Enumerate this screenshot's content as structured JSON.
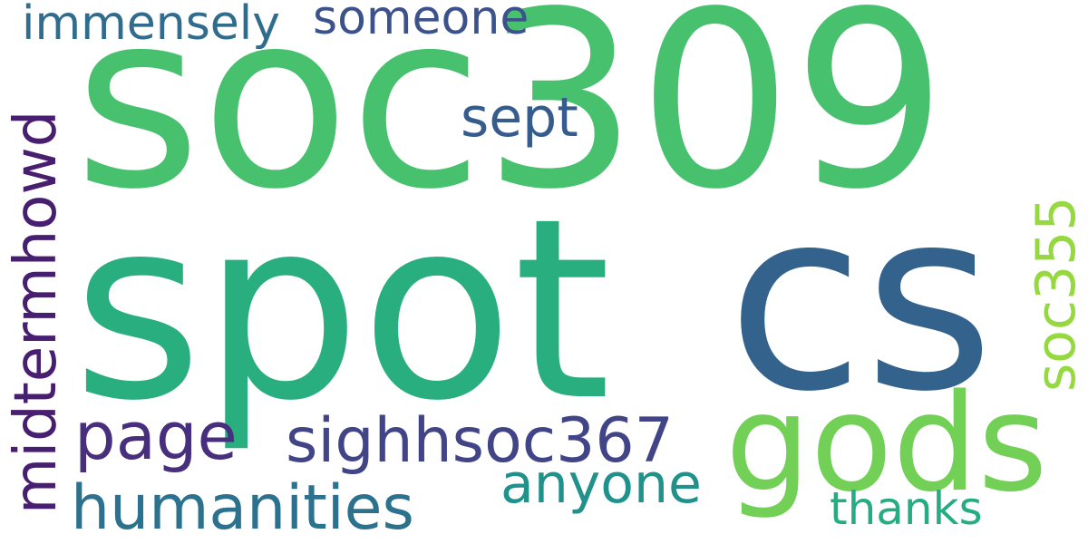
{
  "words": [
    {
      "text": "soc309",
      "color": "#48c16e"
    },
    {
      "text": "spot",
      "color": "#29af7f"
    },
    {
      "text": "cs",
      "color": "#33638d"
    },
    {
      "text": "gods",
      "color": "#73d056"
    },
    {
      "text": "immensely",
      "color": "#2f6c8e"
    },
    {
      "text": "someone",
      "color": "#3b528b"
    },
    {
      "text": "sept",
      "color": "#365c8d"
    },
    {
      "text": "midtermhowd",
      "color": "#481f70"
    },
    {
      "text": "page",
      "color": "#472f7d"
    },
    {
      "text": "sighhsoc367",
      "color": "#414487"
    },
    {
      "text": "humanities",
      "color": "#2c728e"
    },
    {
      "text": "anyone",
      "color": "#21918c"
    },
    {
      "text": "soc355",
      "color": "#95d840"
    },
    {
      "text": "thanks",
      "color": "#25ac82"
    }
  ]
}
